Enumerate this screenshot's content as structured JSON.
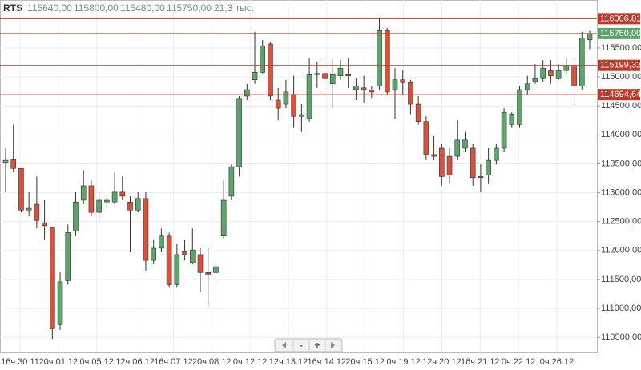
{
  "chart_data": {
    "type": "candlestick",
    "header": {
      "symbol": "RTS",
      "open": "115640,00",
      "high": "115800,00",
      "low": "115480,00",
      "close": "115750,00",
      "volume": "21,3 тыс."
    },
    "open": [
      113520,
      113570,
      113420,
      112700,
      112800,
      112480,
      112400,
      110720,
      111480,
      112340,
      112870,
      113120,
      112660,
      112840,
      112840,
      113010,
      112840,
      112700,
      112900,
      111830,
      112040,
      112250,
      111410,
      111980,
      111790,
      111930,
      111620,
      111620,
      112250,
      112940,
      113450,
      114670,
      114950,
      115080,
      115570,
      114600,
      114530,
      114700,
      114320,
      114280,
      115040,
      115060,
      114880,
      115020,
      115040,
      114780,
      114810,
      114770,
      114840,
      115800,
      114780,
      114950,
      114900,
      114530,
      114230,
      113660,
      113770,
      113630,
      113630,
      113770,
      113770,
      113280,
      113310,
      113560,
      113770,
      114180,
      114180,
      114780,
      114920,
      114970,
      115110,
      114970,
      115110,
      115200,
      114840,
      115640
    ],
    "high": [
      113770,
      114180,
      113420,
      113010,
      113280,
      112870,
      112400,
      111620,
      112450,
      113010,
      113390,
      113210,
      113010,
      112940,
      113350,
      113280,
      112940,
      113010,
      113010,
      112180,
      112380,
      112310,
      112110,
      112180,
      112380,
      112040,
      112040,
      111790,
      113210,
      113490,
      114670,
      114880,
      115780,
      115640,
      115610,
      114810,
      114950,
      115020,
      114530,
      115330,
      115250,
      115290,
      115290,
      115290,
      115330,
      114970,
      115020,
      114840,
      116030,
      115850,
      115150,
      115110,
      114950,
      114670,
      114320,
      113980,
      113840,
      113770,
      114250,
      114050,
      113840,
      113490,
      113770,
      113840,
      114460,
      114390,
      114840,
      115020,
      115220,
      115290,
      115290,
      115220,
      115330,
      115290,
      115780,
      115800
    ],
    "low": [
      113010,
      113350,
      112660,
      112590,
      112380,
      112180,
      110470,
      110630,
      111410,
      112250,
      112800,
      112590,
      112560,
      112730,
      112800,
      112870,
      111970,
      112660,
      111650,
      111760,
      111970,
      111370,
      111370,
      111830,
      111760,
      111280,
      111040,
      111480,
      112200,
      112870,
      113280,
      114600,
      114880,
      115060,
      114600,
      114250,
      114460,
      114120,
      114050,
      114230,
      114810,
      114740,
      114460,
      114950,
      114810,
      114600,
      114560,
      114640,
      114780,
      114700,
      114280,
      114700,
      114360,
      114180,
      113560,
      113560,
      113120,
      113170,
      113560,
      113700,
      113120,
      113010,
      113150,
      113490,
      113700,
      114120,
      114120,
      114700,
      114880,
      114920,
      114880,
      114950,
      115060,
      114530,
      114780,
      115480
    ],
    "close": [
      113560,
      113420,
      112700,
      112730,
      112520,
      112430,
      110650,
      111460,
      112310,
      112840,
      113120,
      112660,
      112870,
      112870,
      113010,
      112940,
      112700,
      112900,
      111830,
      112040,
      112250,
      111410,
      111930,
      111930,
      112010,
      111620,
      111590,
      111720,
      112870,
      113450,
      114630,
      114780,
      115080,
      115530,
      114670,
      114460,
      114740,
      114320,
      114350,
      115040,
      115060,
      114970,
      115040,
      115150,
      115020,
      114840,
      114780,
      114740,
      115800,
      114740,
      114950,
      114900,
      114530,
      114230,
      113660,
      113630,
      113280,
      113310,
      113910,
      113910,
      113260,
      113260,
      113560,
      113770,
      114390,
      114360,
      114780,
      114880,
      114970,
      115150,
      115020,
      115110,
      115200,
      114840,
      115670,
      115750
    ],
    "up_color": "#5ba56b",
    "down_color": "#d9513a",
    "ylim": [
      110240,
      116330
    ],
    "yticks": [
      {
        "value": 110500,
        "label": "110500,00"
      },
      {
        "value": 111000,
        "label": "111000,00"
      },
      {
        "value": 111500,
        "label": "111500,00"
      },
      {
        "value": 112000,
        "label": "112000,00"
      },
      {
        "value": 112500,
        "label": "112500,00"
      },
      {
        "value": 113000,
        "label": "113000,00"
      },
      {
        "value": 113500,
        "label": "113500,00"
      },
      {
        "value": 114000,
        "label": "114000,00"
      },
      {
        "value": 114500,
        "label": "114500,00"
      },
      {
        "value": 115000,
        "label": "115000,00"
      },
      {
        "value": 115500,
        "label": "115500,00"
      }
    ],
    "xlabels": [
      "16ч 30.11",
      "20ч 01.12",
      "0ч 05.12",
      "12ч 06.12",
      "16ч 07.12",
      "20ч 08.12",
      "0ч 12.12",
      "12ч 13.12",
      "16ч 14.12",
      "20ч 15.12",
      "0ч 19.12",
      "12ч 20.12",
      "16ч 21.12",
      "0ч 22.12",
      "0ч 26.12"
    ],
    "levels": [
      {
        "value": 116006.81,
        "label": "116006,81",
        "color": "#c0392b"
      },
      {
        "value": 115750,
        "label": "115750,00",
        "color": "#5ba56b"
      },
      {
        "value": 115199.32,
        "label": "115199,32",
        "color": "#c0392b"
      },
      {
        "value": 114694.64,
        "label": "114694,64",
        "color": "#c0392b"
      }
    ],
    "grid": true,
    "nav": [
      "-",
      "+"
    ]
  }
}
